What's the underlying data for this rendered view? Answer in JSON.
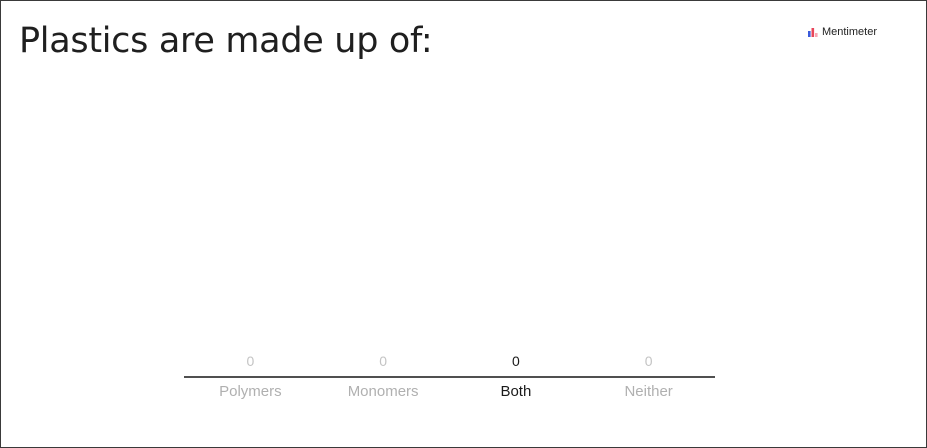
{
  "slide": {
    "title": "Plastics are made up of:",
    "brand": "Mentimeter",
    "brand_logo_icon": "bar-chart-logo-icon",
    "brand_colors": [
      "#3b5bdb",
      "#e8465a",
      "#f7a6b2"
    ]
  },
  "chart_data": {
    "type": "bar",
    "categories": [
      "Polymers",
      "Monomers",
      "Both",
      "Neither"
    ],
    "values": [
      0,
      0,
      0,
      0
    ],
    "title": "",
    "xlabel": "",
    "ylabel": "",
    "grid": false,
    "legend": "none",
    "highlighted_category": "Both"
  }
}
